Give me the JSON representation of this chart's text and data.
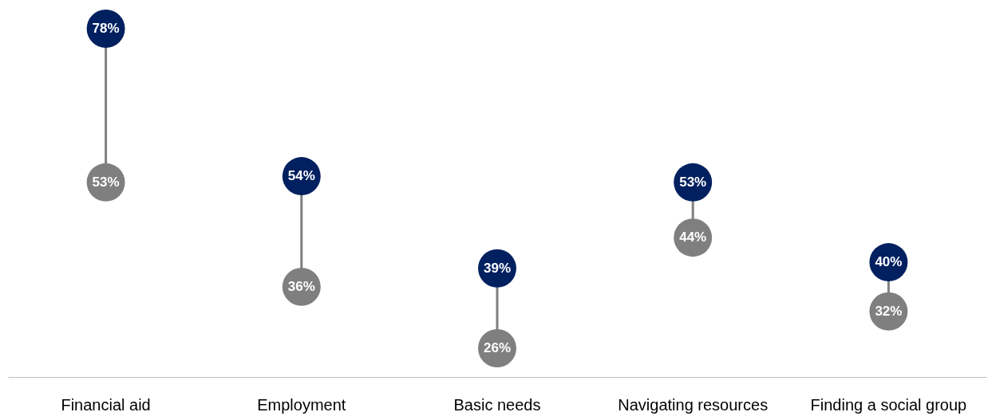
{
  "chart_data": {
    "type": "scatter",
    "categories": [
      "Financial aid",
      "Employment",
      "Basic needs",
      "Navigating resources",
      "Finding a social group"
    ],
    "series": [
      {
        "color": "#002060",
        "values": [
          78,
          54,
          39,
          53,
          40
        ],
        "value_labels": [
          "78%",
          "54%",
          "39%",
          "53%",
          "40%"
        ]
      },
      {
        "color": "#7f7f7f",
        "values": [
          53,
          36,
          26,
          44,
          32
        ],
        "value_labels": [
          "53%",
          "36%",
          "26%",
          "44%",
          "32%"
        ]
      }
    ],
    "tick_labels": "x",
    "grid": false,
    "marker": "circle"
  }
}
